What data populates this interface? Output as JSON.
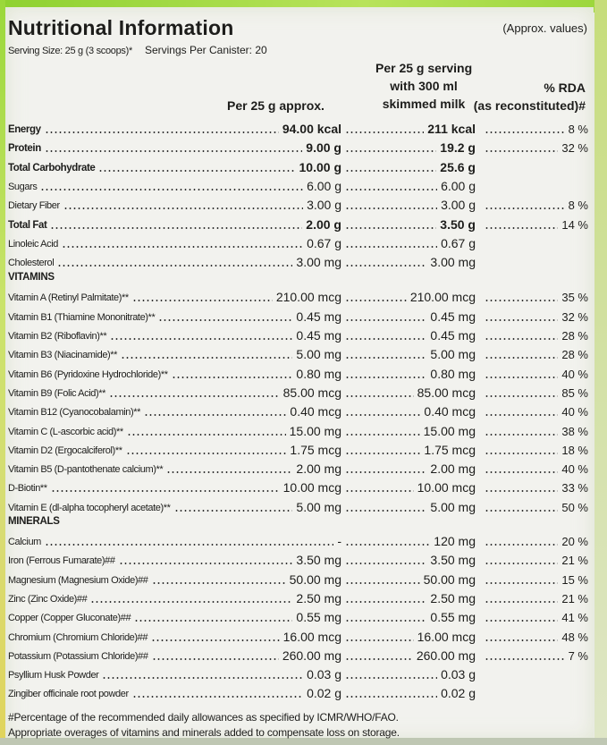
{
  "title": "Nutritional Information",
  "approx_note": "(Approx. values)",
  "serving_size": "Serving Size: 25 g (3 scoops)*",
  "servings": "Servings Per Canister: 20",
  "col1": "Per 25 g approx.",
  "col2": [
    "Per 25 g serving",
    "with 300 ml",
    "skimmed milk"
  ],
  "col3": [
    "% RDA",
    "(as reconstituted)#"
  ],
  "general": [
    {
      "name": "Energy",
      "v1": "94.00 kcal",
      "v2": "211 kcal",
      "rda": "8 %",
      "bold": true
    },
    {
      "name": "Protein",
      "v1": "9.00 g",
      "v2": "19.2 g",
      "rda": "32 %",
      "bold": true
    },
    {
      "name": "Total Carbohydrate",
      "v1": "10.00 g",
      "v2": "25.6 g",
      "rda": "",
      "bold": true
    },
    {
      "name": "Sugars",
      "v1": "6.00 g",
      "v2": "6.00 g",
      "rda": "",
      "bold": false
    },
    {
      "name": "Dietary Fiber",
      "v1": "3.00 g",
      "v2": "3.00 g",
      "rda": "8 %",
      "bold": false
    },
    {
      "name": "Total Fat",
      "v1": "2.00 g",
      "v2": "3.50 g",
      "rda": "14 %",
      "bold": true
    },
    {
      "name": "Linoleic Acid",
      "v1": "0.67 g",
      "v2": "0.67 g",
      "rda": "",
      "bold": false
    },
    {
      "name": "Cholesterol",
      "v1": "3.00 mg",
      "v2": "3.00 mg",
      "rda": "",
      "bold": false
    }
  ],
  "vitamins_heading": "VITAMINS",
  "vitamins": [
    {
      "name": "Vitamin A (Retinyl Palmitate)**",
      "v1": "210.00 mcg",
      "v2": "210.00 mcg",
      "rda": "35 %"
    },
    {
      "name": "Vitamin B1 (Thiamine Mononitrate)**",
      "v1": "0.45 mg",
      "v2": "0.45 mg",
      "rda": "32 %"
    },
    {
      "name": "Vitamin B2 (Riboflavin)**",
      "v1": "0.45 mg",
      "v2": "0.45 mg",
      "rda": "28 %"
    },
    {
      "name": "Vitamin B3 (Niacinamide)**",
      "v1": "5.00 mg",
      "v2": "5.00 mg",
      "rda": "28 %"
    },
    {
      "name": "Vitamin B6 (Pyridoxine Hydrochloride)**",
      "v1": "0.80 mg",
      "v2": "0.80 mg",
      "rda": "40 %"
    },
    {
      "name": "Vitamin B9 (Folic Acid)**",
      "v1": "85.00 mcg",
      "v2": "85.00 mcg",
      "rda": "85 %"
    },
    {
      "name": "Vitamin B12 (Cyanocobalamin)**",
      "v1": "0.40 mcg",
      "v2": "0.40 mcg",
      "rda": "40 %"
    },
    {
      "name": "Vitamin C (L-ascorbic acid)**",
      "v1": "15.00 mg",
      "v2": "15.00 mg",
      "rda": "38 %"
    },
    {
      "name": "Vitamin D2 (Ergocalciferol)**",
      "v1": "1.75 mcg",
      "v2": "1.75 mcg",
      "rda": "18 %"
    },
    {
      "name": "Vitamin B5 (D-pantothenate calcium)**",
      "v1": "2.00 mg",
      "v2": "2.00 mg",
      "rda": "40 %"
    },
    {
      "name": "D-Biotin**",
      "v1": "10.00 mcg",
      "v2": "10.00 mcg",
      "rda": "33 %"
    },
    {
      "name": "Vitamin E (dl-alpha tocopheryl acetate)**",
      "v1": "5.00 mg",
      "v2": "5.00 mg",
      "rda": "50 %"
    }
  ],
  "minerals_heading": "MINERALS",
  "minerals": [
    {
      "name": "Calcium",
      "v1": "-",
      "v2": "120 mg",
      "rda": "20 %"
    },
    {
      "name": "Iron (Ferrous Fumarate)##",
      "v1": "3.50 mg",
      "v2": "3.50 mg",
      "rda": "21 %"
    },
    {
      "name": "Magnesium (Magnesium Oxide)##",
      "v1": "50.00 mg",
      "v2": "50.00 mg",
      "rda": "15 %"
    },
    {
      "name": "Zinc (Zinc Oxide)##",
      "v1": "2.50 mg",
      "v2": "2.50 mg",
      "rda": "21 %"
    },
    {
      "name": "Copper (Copper Gluconate)##",
      "v1": "0.55 mg",
      "v2": "0.55 mg",
      "rda": "41 %"
    },
    {
      "name": "Chromium (Chromium Chloride)##",
      "v1": "16.00 mcg",
      "v2": "16.00 mcg",
      "rda": "48 %"
    },
    {
      "name": "Potassium (Potassium Chloride)##",
      "v1": "260.00 mg",
      "v2": "260.00 mg",
      "rda": "7 %"
    },
    {
      "name": "Psyllium Husk Powder",
      "v1": "0.03 g",
      "v2": "0.03 g",
      "rda": ""
    },
    {
      "name": "Zingiber officinale root powder",
      "v1": "0.02 g",
      "v2": "0.02 g",
      "rda": ""
    }
  ],
  "footnotes": [
    "#Percentage of the recommended daily allowances as specified by ICMR/WHO/FAO.",
    "Appropriate overages of vitamins and minerals added to compensate loss on storage."
  ]
}
